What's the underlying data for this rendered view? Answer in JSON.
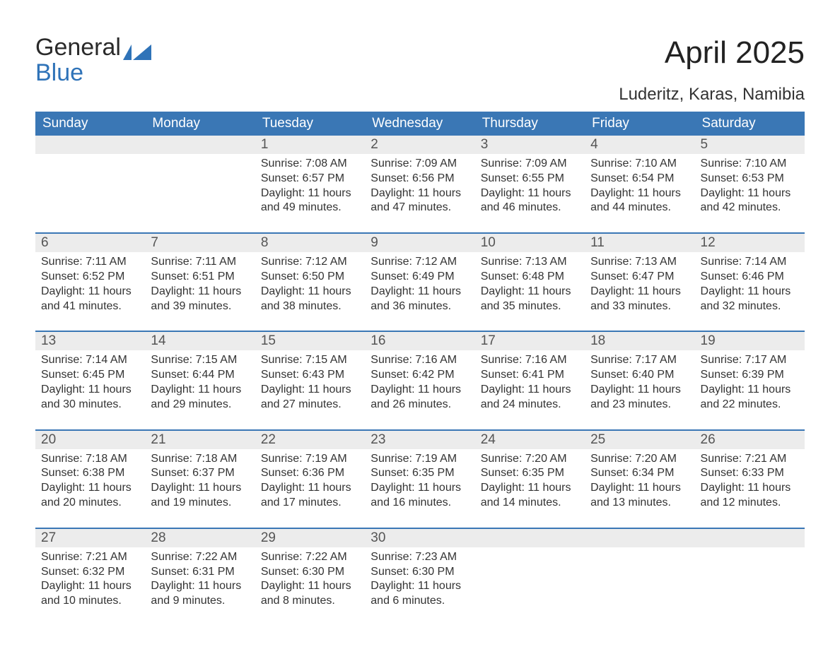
{
  "logo": {
    "word1": "General",
    "word2": "Blue",
    "flag_color": "#2f73b8"
  },
  "month_title": "April 2025",
  "location": "Luderitz, Karas, Namibia",
  "colors": {
    "header_bg": "#3a77b5",
    "header_text": "#ffffff",
    "dayhead_bg": "#ececec",
    "dayhead_text": "#555555",
    "body_text": "#333333",
    "row_separator": "#3a77b5",
    "page_bg": "#ffffff"
  },
  "day_headers": [
    "Sunday",
    "Monday",
    "Tuesday",
    "Wednesday",
    "Thursday",
    "Friday",
    "Saturday"
  ],
  "weeks": [
    [
      null,
      null,
      {
        "n": "1",
        "sr": "7:08 AM",
        "ss": "6:57 PM",
        "dl": "11 hours and 49 minutes."
      },
      {
        "n": "2",
        "sr": "7:09 AM",
        "ss": "6:56 PM",
        "dl": "11 hours and 47 minutes."
      },
      {
        "n": "3",
        "sr": "7:09 AM",
        "ss": "6:55 PM",
        "dl": "11 hours and 46 minutes."
      },
      {
        "n": "4",
        "sr": "7:10 AM",
        "ss": "6:54 PM",
        "dl": "11 hours and 44 minutes."
      },
      {
        "n": "5",
        "sr": "7:10 AM",
        "ss": "6:53 PM",
        "dl": "11 hours and 42 minutes."
      }
    ],
    [
      {
        "n": "6",
        "sr": "7:11 AM",
        "ss": "6:52 PM",
        "dl": "11 hours and 41 minutes."
      },
      {
        "n": "7",
        "sr": "7:11 AM",
        "ss": "6:51 PM",
        "dl": "11 hours and 39 minutes."
      },
      {
        "n": "8",
        "sr": "7:12 AM",
        "ss": "6:50 PM",
        "dl": "11 hours and 38 minutes."
      },
      {
        "n": "9",
        "sr": "7:12 AM",
        "ss": "6:49 PM",
        "dl": "11 hours and 36 minutes."
      },
      {
        "n": "10",
        "sr": "7:13 AM",
        "ss": "6:48 PM",
        "dl": "11 hours and 35 minutes."
      },
      {
        "n": "11",
        "sr": "7:13 AM",
        "ss": "6:47 PM",
        "dl": "11 hours and 33 minutes."
      },
      {
        "n": "12",
        "sr": "7:14 AM",
        "ss": "6:46 PM",
        "dl": "11 hours and 32 minutes."
      }
    ],
    [
      {
        "n": "13",
        "sr": "7:14 AM",
        "ss": "6:45 PM",
        "dl": "11 hours and 30 minutes."
      },
      {
        "n": "14",
        "sr": "7:15 AM",
        "ss": "6:44 PM",
        "dl": "11 hours and 29 minutes."
      },
      {
        "n": "15",
        "sr": "7:15 AM",
        "ss": "6:43 PM",
        "dl": "11 hours and 27 minutes."
      },
      {
        "n": "16",
        "sr": "7:16 AM",
        "ss": "6:42 PM",
        "dl": "11 hours and 26 minutes."
      },
      {
        "n": "17",
        "sr": "7:16 AM",
        "ss": "6:41 PM",
        "dl": "11 hours and 24 minutes."
      },
      {
        "n": "18",
        "sr": "7:17 AM",
        "ss": "6:40 PM",
        "dl": "11 hours and 23 minutes."
      },
      {
        "n": "19",
        "sr": "7:17 AM",
        "ss": "6:39 PM",
        "dl": "11 hours and 22 minutes."
      }
    ],
    [
      {
        "n": "20",
        "sr": "7:18 AM",
        "ss": "6:38 PM",
        "dl": "11 hours and 20 minutes."
      },
      {
        "n": "21",
        "sr": "7:18 AM",
        "ss": "6:37 PM",
        "dl": "11 hours and 19 minutes."
      },
      {
        "n": "22",
        "sr": "7:19 AM",
        "ss": "6:36 PM",
        "dl": "11 hours and 17 minutes."
      },
      {
        "n": "23",
        "sr": "7:19 AM",
        "ss": "6:35 PM",
        "dl": "11 hours and 16 minutes."
      },
      {
        "n": "24",
        "sr": "7:20 AM",
        "ss": "6:35 PM",
        "dl": "11 hours and 14 minutes."
      },
      {
        "n": "25",
        "sr": "7:20 AM",
        "ss": "6:34 PM",
        "dl": "11 hours and 13 minutes."
      },
      {
        "n": "26",
        "sr": "7:21 AM",
        "ss": "6:33 PM",
        "dl": "11 hours and 12 minutes."
      }
    ],
    [
      {
        "n": "27",
        "sr": "7:21 AM",
        "ss": "6:32 PM",
        "dl": "11 hours and 10 minutes."
      },
      {
        "n": "28",
        "sr": "7:22 AM",
        "ss": "6:31 PM",
        "dl": "11 hours and 9 minutes."
      },
      {
        "n": "29",
        "sr": "7:22 AM",
        "ss": "6:30 PM",
        "dl": "11 hours and 8 minutes."
      },
      {
        "n": "30",
        "sr": "7:23 AM",
        "ss": "6:30 PM",
        "dl": "11 hours and 6 minutes."
      },
      null,
      null,
      null
    ]
  ],
  "labels": {
    "sunrise": "Sunrise: ",
    "sunset": "Sunset: ",
    "daylight": "Daylight: "
  }
}
